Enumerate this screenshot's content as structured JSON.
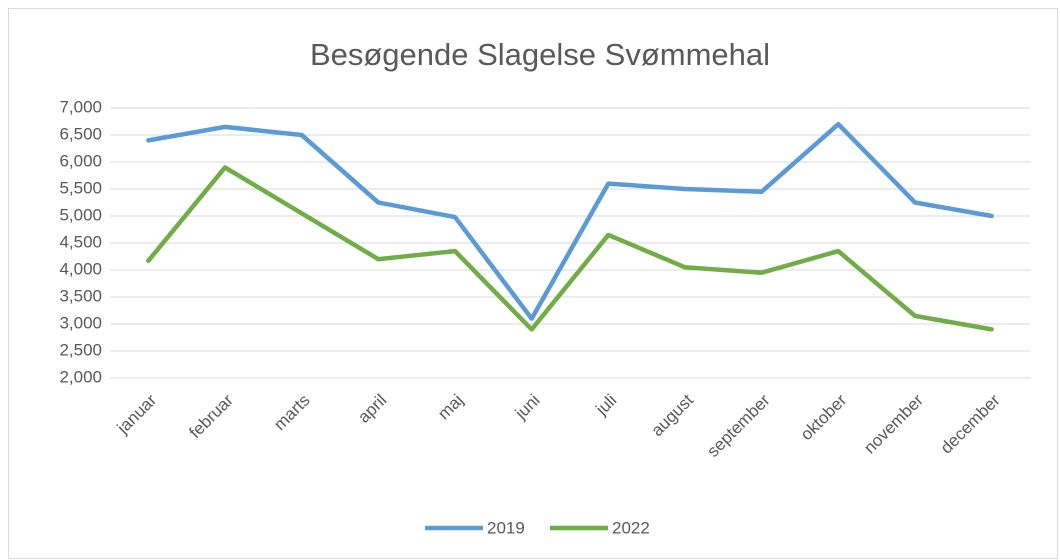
{
  "chart_data": {
    "type": "line",
    "title": "Besøgende Slagelse Svømmehal",
    "categories": [
      "januar",
      "februar",
      "marts",
      "april",
      "maj",
      "juni",
      "juli",
      "august",
      "september",
      "oktober",
      "november",
      "december"
    ],
    "series": [
      {
        "name": "2019",
        "color": "#5b9bd5",
        "values": [
          6400,
          6650,
          6500,
          5250,
          4980,
          3100,
          5600,
          5500,
          5450,
          6700,
          5250,
          5000
        ]
      },
      {
        "name": "2022",
        "color": "#70ad47",
        "values": [
          4170,
          5900,
          5050,
          4200,
          4350,
          2900,
          4650,
          4050,
          3950,
          4350,
          3150,
          2900
        ]
      }
    ],
    "ylim": [
      2000,
      7000
    ],
    "yticks": [
      {
        "value": 2000,
        "label": "2,000"
      },
      {
        "value": 2500,
        "label": "2,500"
      },
      {
        "value": 3000,
        "label": "3,000"
      },
      {
        "value": 3500,
        "label": "3,500"
      },
      {
        "value": 4000,
        "label": "4,000"
      },
      {
        "value": 4500,
        "label": "4,500"
      },
      {
        "value": 5000,
        "label": "5,000"
      },
      {
        "value": 5500,
        "label": "5,500"
      },
      {
        "value": 6000,
        "label": "6,000"
      },
      {
        "value": 6500,
        "label": "6,500"
      },
      {
        "value": 7000,
        "label": "7,000"
      }
    ],
    "grid": true,
    "legend": "bottom"
  }
}
